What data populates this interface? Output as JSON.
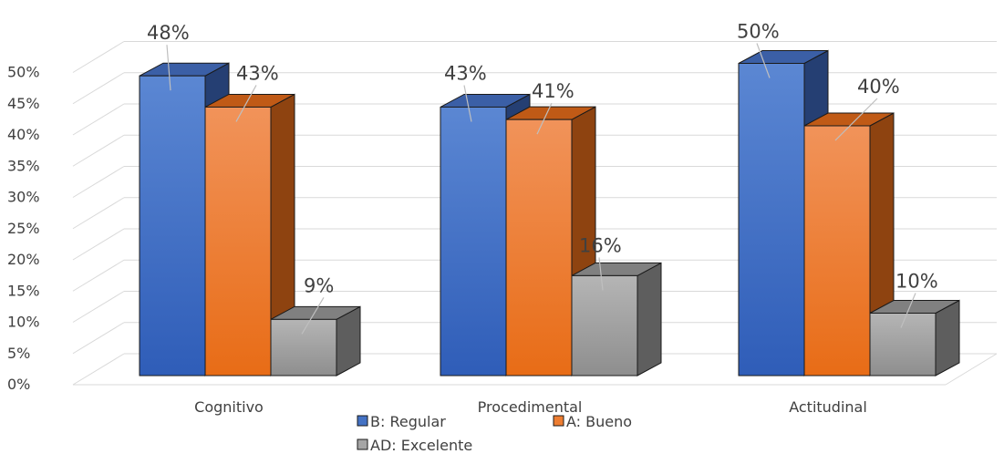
{
  "chart_data": {
    "type": "bar",
    "title": "",
    "xlabel": "",
    "ylabel": "",
    "categories": [
      "Cognitivo",
      "Procedimental",
      "Actitudinal"
    ],
    "series": [
      {
        "name": "B: Regular",
        "values": [
          48,
          43,
          50
        ],
        "labels": [
          "48%",
          "43%",
          "50%"
        ],
        "color": "#4472C4"
      },
      {
        "name": "A: Bueno",
        "values": [
          43,
          41,
          40
        ],
        "labels": [
          "43%",
          "41%",
          "40%"
        ],
        "color": "#ED7D31"
      },
      {
        "name": "AD: Excelente",
        "values": [
          9,
          16,
          10
        ],
        "labels": [
          "9%",
          "16%",
          "10%"
        ],
        "color": "#A5A5A5"
      }
    ],
    "ylim": [
      0,
      50
    ],
    "yticks": [
      "0%",
      "5%",
      "10%",
      "15%",
      "20%",
      "25%",
      "30%",
      "35%",
      "40%",
      "45%",
      "50%"
    ],
    "grid": true,
    "legend": "bottom",
    "style": "3d-clustered-column"
  }
}
